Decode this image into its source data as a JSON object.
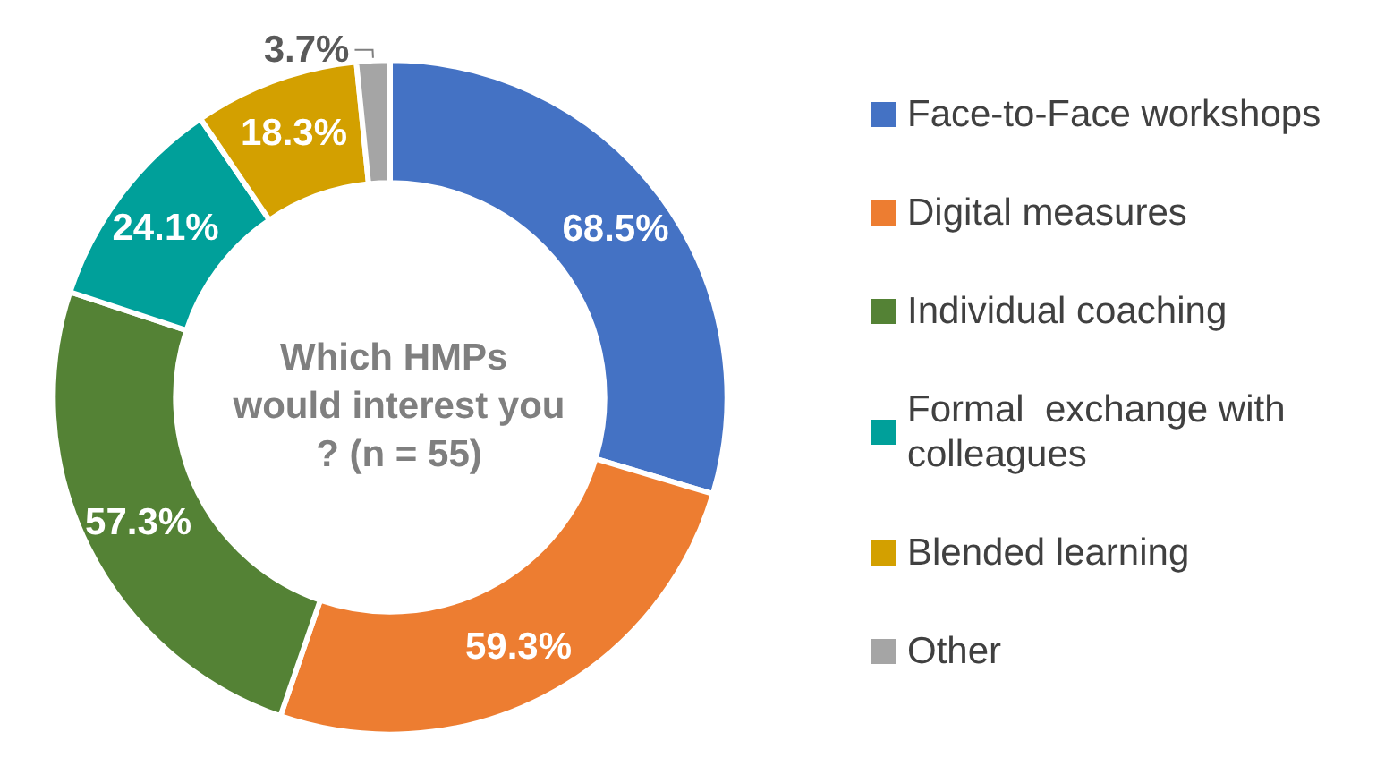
{
  "chart_data": {
    "type": "donut",
    "title": "Which HMPs would interest you? (n = 55)",
    "categories": [
      "Face-to-Face workshops",
      "Digital measures",
      "Individual coaching",
      "Formal  exchange with colleagues",
      "Blended learning",
      "Other"
    ],
    "values": [
      68.5,
      59.3,
      57.3,
      24.1,
      18.3,
      3.7
    ],
    "value_labels": [
      "68.5%",
      "59.3%",
      "57.3%",
      "24.1%",
      "18.3%",
      "3.7%"
    ],
    "colors": [
      "#4472c4",
      "#ed7d31",
      "#548235",
      "#00a09a",
      "#d3a000",
      "#a5a5a5"
    ],
    "legend": "right"
  }
}
